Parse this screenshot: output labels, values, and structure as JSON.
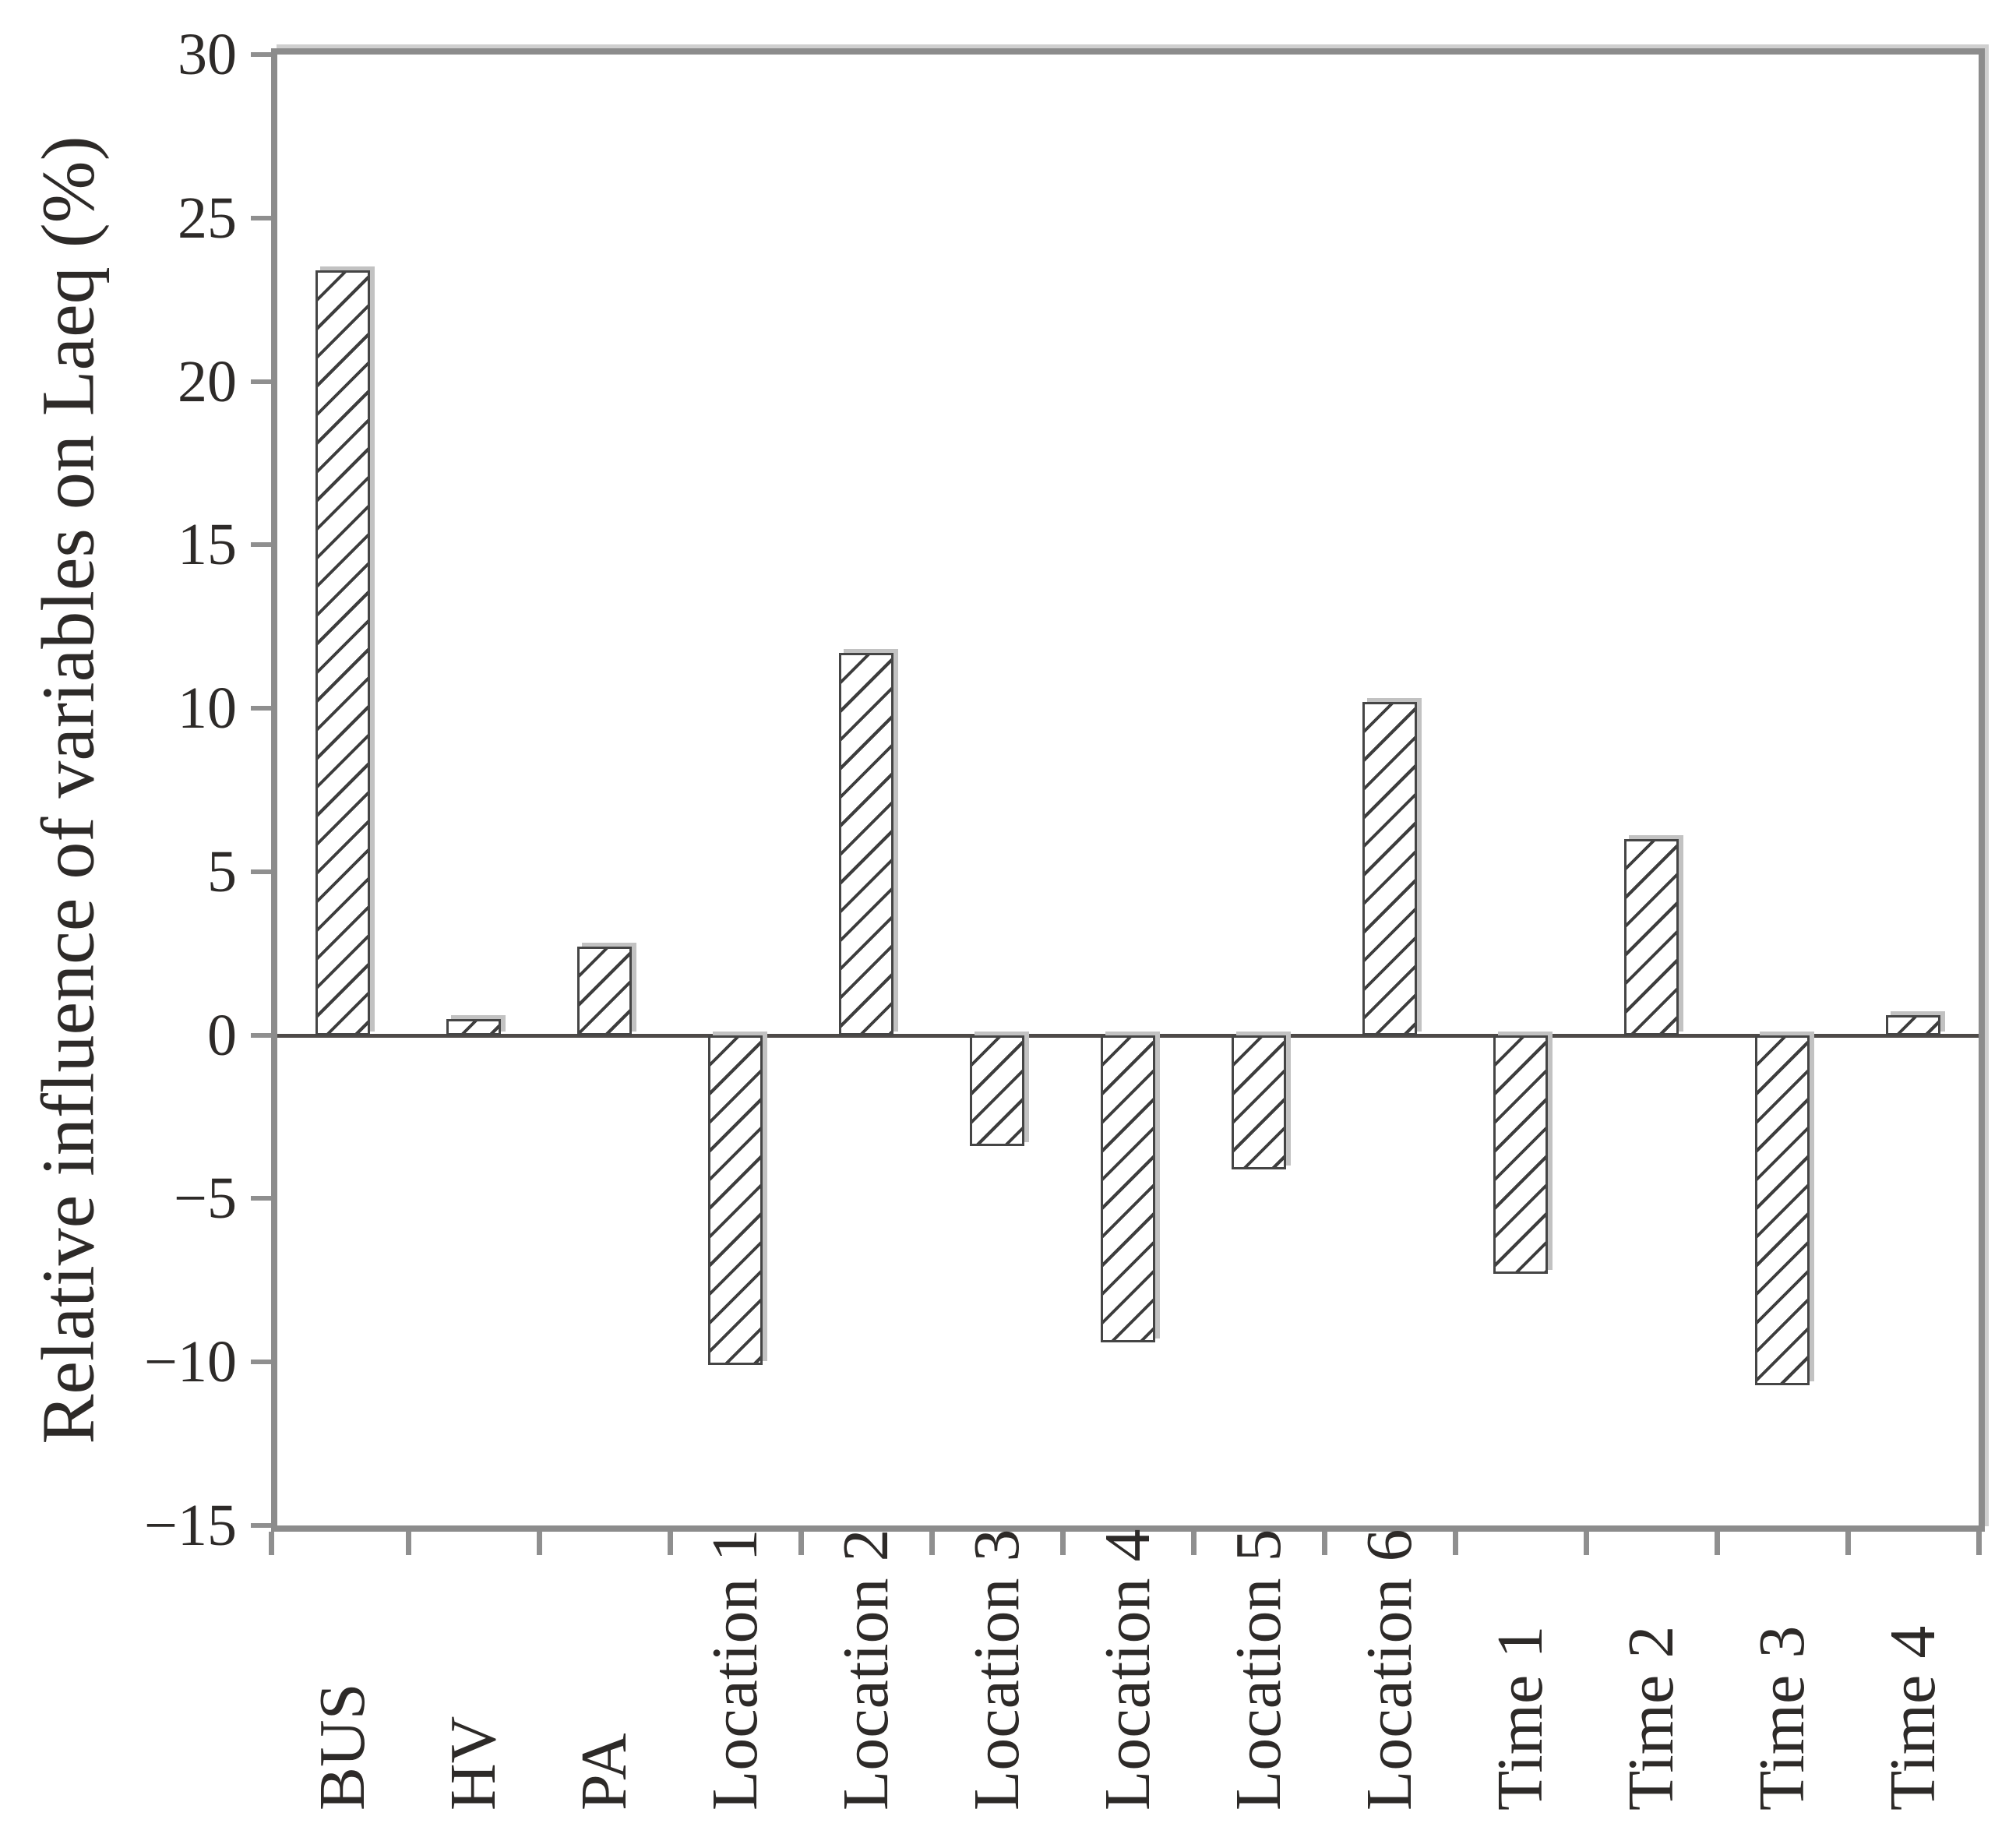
{
  "figure": {
    "background": "#ffffff",
    "frame_color": "#8c8c8c",
    "zero_line_color": "#4e4a48",
    "tick_color": "#8f8f8f",
    "text_color": "#2d2a28"
  },
  "chart_data": {
    "type": "bar",
    "title": "",
    "xlabel": "",
    "ylabel": "Relative influence of variables on Laeq (%)",
    "categories": [
      "BUS",
      "HV",
      "PA",
      "Location 1",
      "Location 2",
      "Location 3",
      "Location 4",
      "Location 5",
      "Location 6",
      "Time 1",
      "Time 2",
      "Time 3",
      "Time 4"
    ],
    "values": [
      23.4,
      0.5,
      2.7,
      -10.1,
      11.7,
      -3.4,
      -9.4,
      -4.1,
      10.2,
      -7.3,
      6.0,
      -10.7,
      0.6
    ],
    "ylim": [
      -15,
      30
    ],
    "ytick_step": 5,
    "ytick_labels": [
      "30",
      "25",
      "20",
      "15",
      "10",
      "5",
      "0",
      "−5",
      "−10",
      "−15"
    ],
    "grid": false,
    "legend": null,
    "bar_style": {
      "fill": "#ffffff",
      "hatch": "diagonal-forward",
      "hatch_color": "#3d3d3d",
      "border_color": "#454545",
      "shadow_color": "#c2c2c2"
    }
  }
}
